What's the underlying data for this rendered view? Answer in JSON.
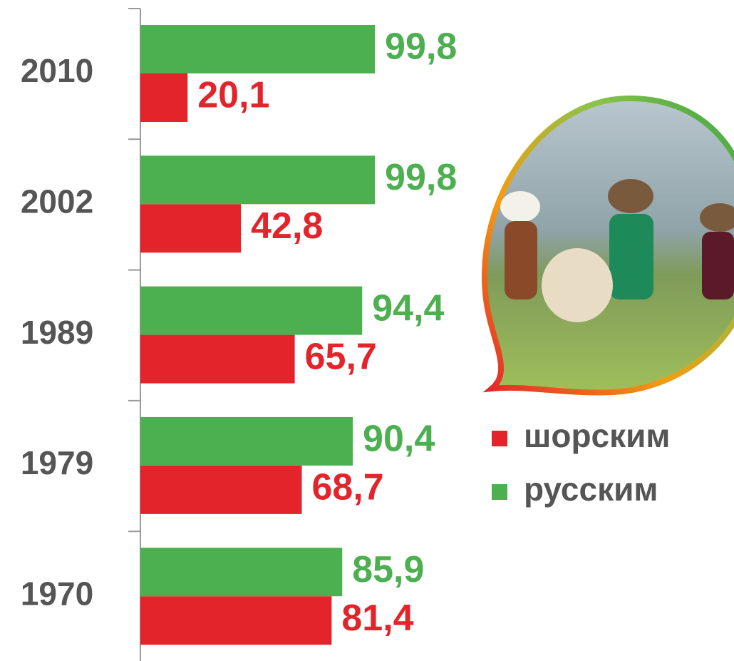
{
  "chart_data": {
    "type": "bar",
    "orientation": "horizontal",
    "categories": [
      "2010",
      "2002",
      "1989",
      "1979",
      "1970"
    ],
    "series": [
      {
        "name": "шорским",
        "color": "#e3242b",
        "values": [
          20.1,
          42.8,
          65.7,
          68.7,
          81.4
        ],
        "value_labels": [
          "20,1",
          "42,8",
          "65,7",
          "68,7",
          "81,4"
        ]
      },
      {
        "name": "русским",
        "color": "#4caf50",
        "values": [
          99.8,
          99.8,
          94.4,
          90.4,
          85.9
        ],
        "value_labels": [
          "99,8",
          "99,8",
          "94,4",
          "90,4",
          "85,9"
        ]
      }
    ]
  }
}
